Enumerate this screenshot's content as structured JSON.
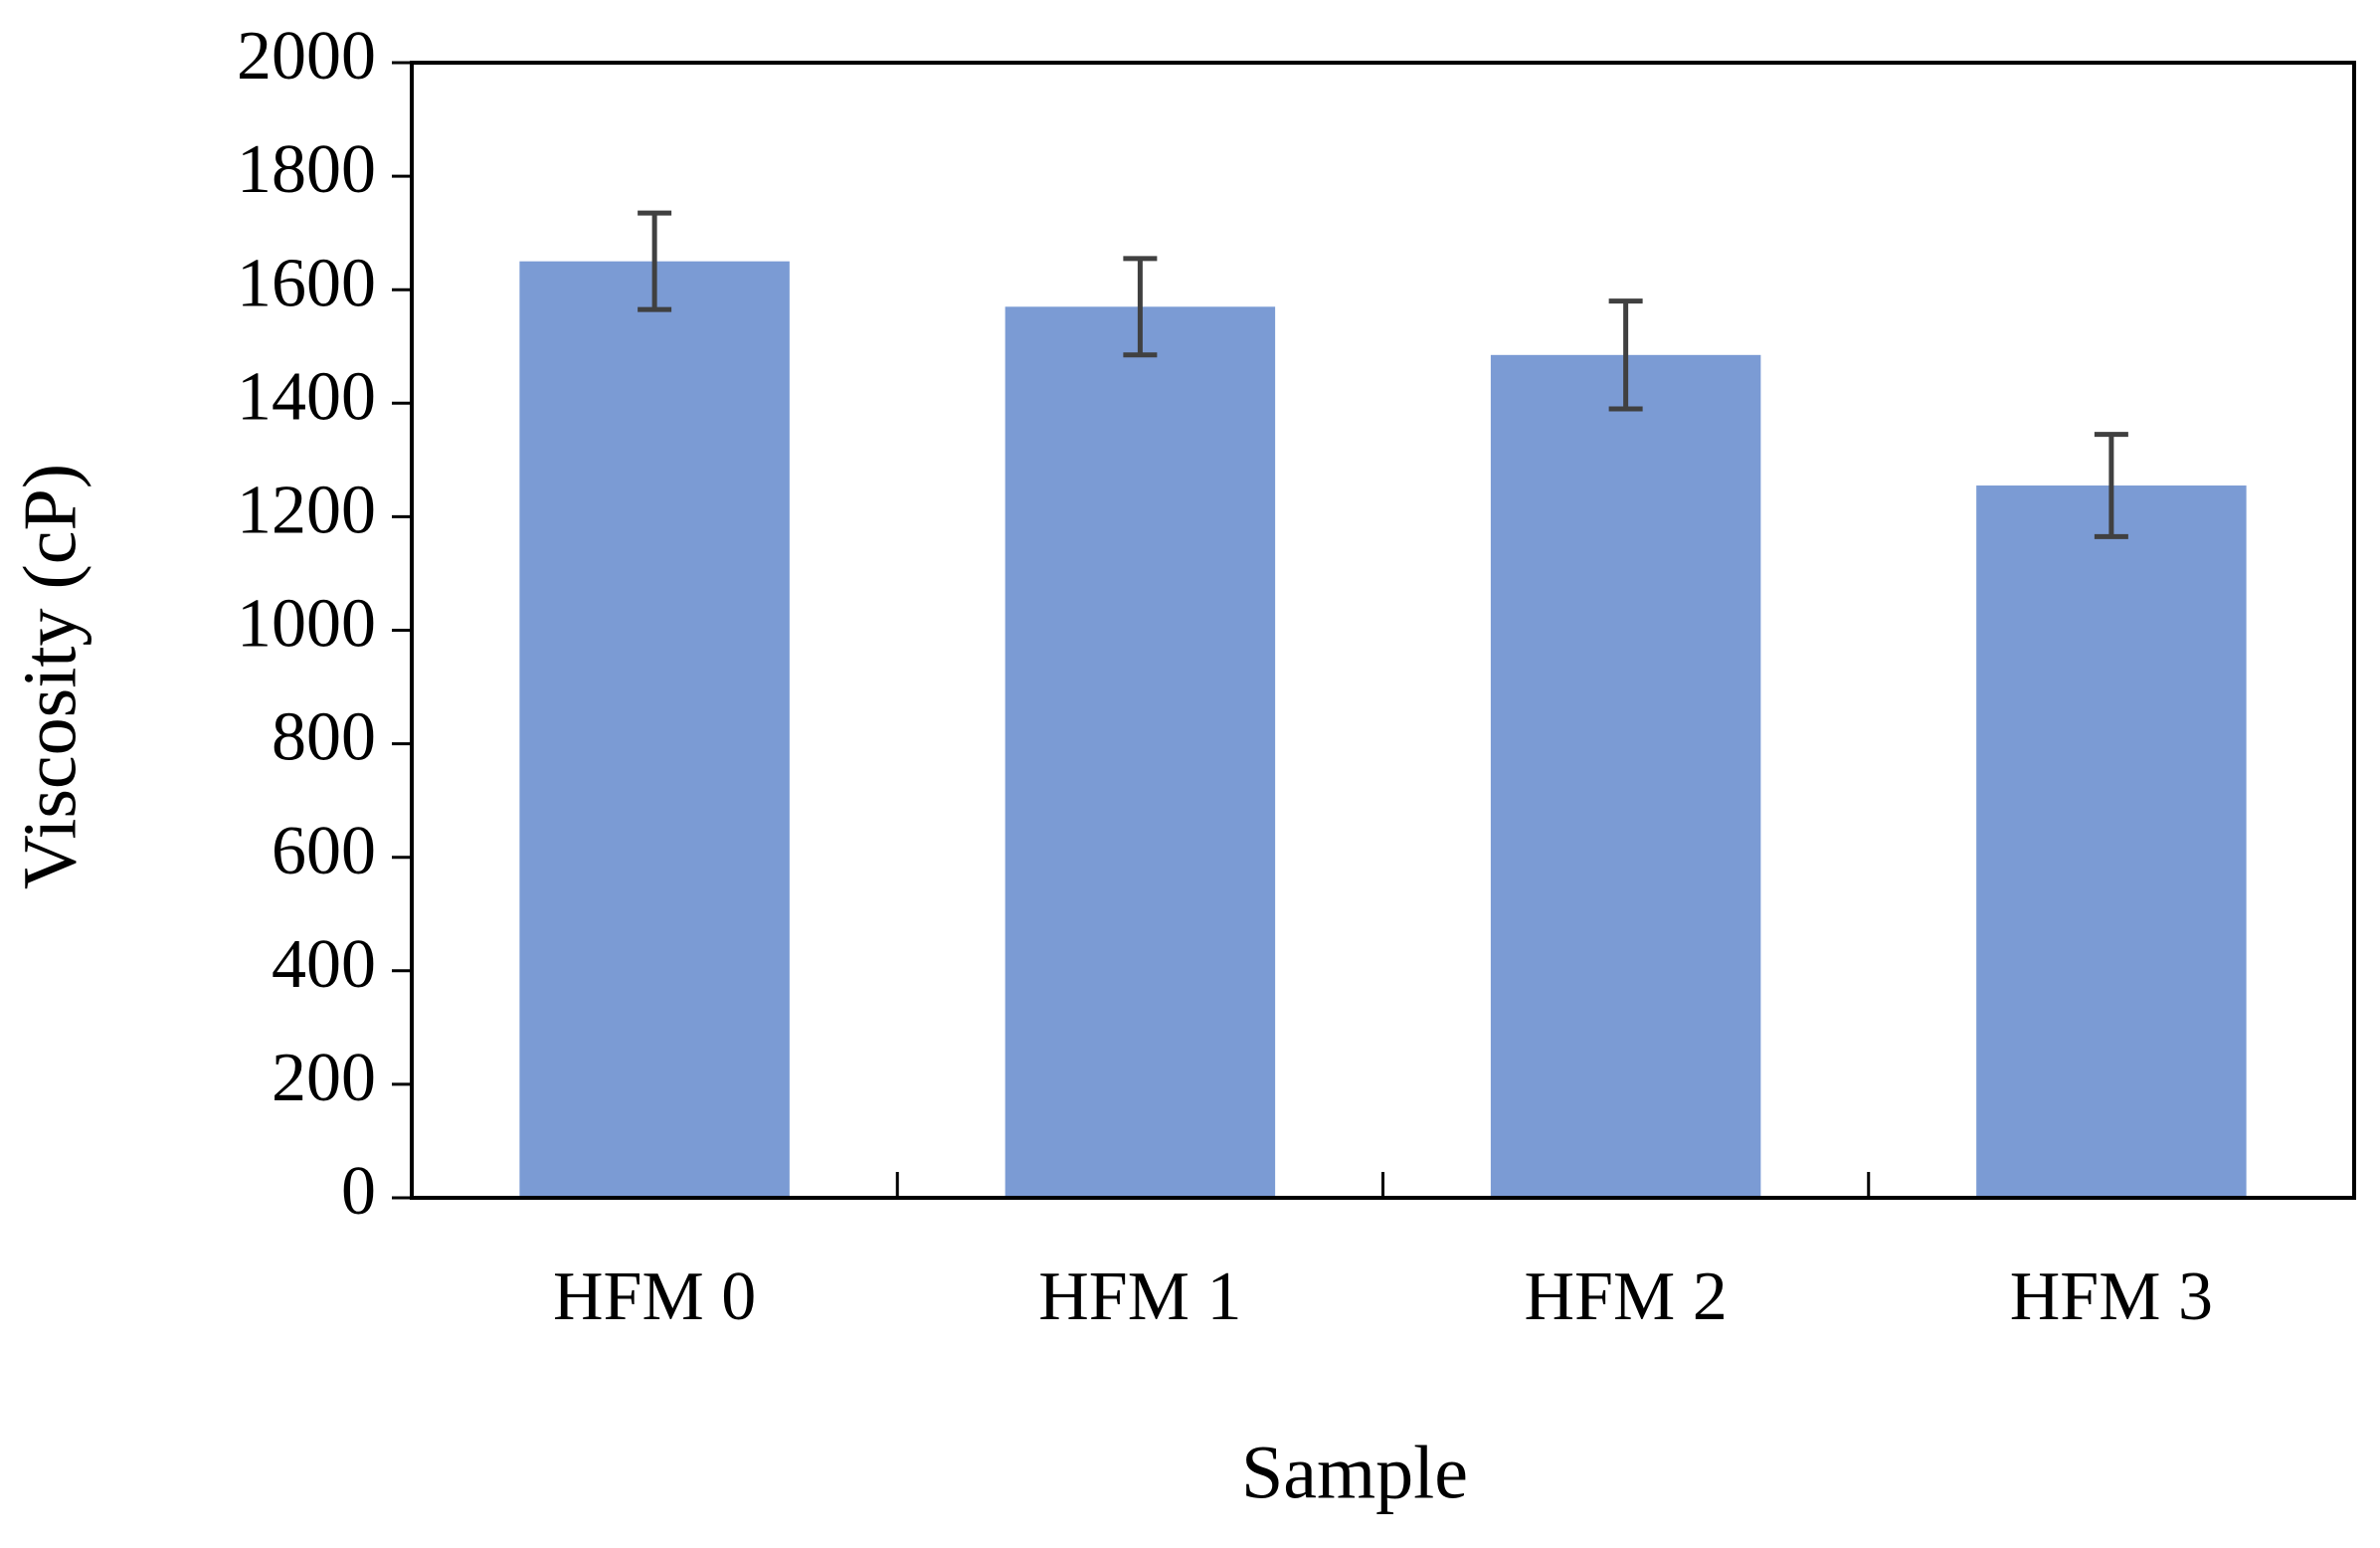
{
  "chart_data": {
    "type": "bar",
    "x_label": "Sample",
    "y_label": "Viscosity (cP)",
    "categories": [
      "HFM 0",
      "HFM 1",
      "HFM 2",
      "HFM 3"
    ],
    "values": [
      1650,
      1570,
      1485,
      1255
    ],
    "errors": [
      85,
      85,
      95,
      90
    ],
    "color": "#7b9bd4",
    "error_color": "#404040",
    "ylim": [
      0,
      2000
    ],
    "yticks": [
      0,
      200,
      400,
      600,
      800,
      1000,
      1200,
      1400,
      1600,
      1800,
      2000
    ],
    "grid": false
  }
}
